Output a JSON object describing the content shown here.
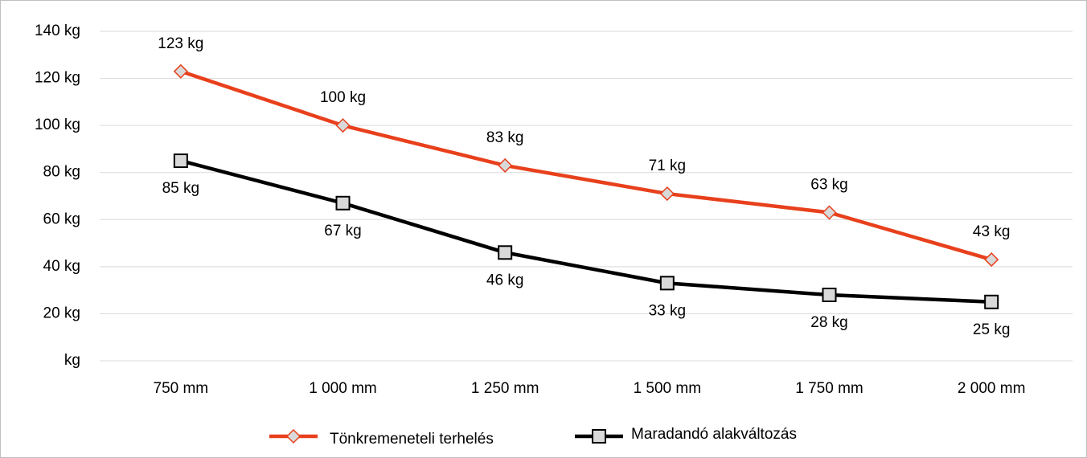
{
  "chart_data": {
    "type": "line",
    "categories": [
      "750 mm",
      "1 000 mm",
      "1 250 mm",
      "1 500 mm",
      "1 750 mm",
      "2 000 mm"
    ],
    "series": [
      {
        "name": "Tönkremeneteli terhelés",
        "color": "#e8401c",
        "marker": "diamond",
        "values": [
          123,
          100,
          83,
          71,
          63,
          43
        ],
        "value_labels": [
          "123 kg",
          "100 kg",
          "83 kg",
          "71 kg",
          "63 kg",
          "43 kg"
        ]
      },
      {
        "name": "Maradandó alakváltozás",
        "color": "#000000",
        "marker": "square",
        "values": [
          85,
          67,
          46,
          33,
          28,
          25
        ],
        "value_labels": [
          "85 kg",
          "67 kg",
          "46 kg",
          "33 kg",
          "28 kg",
          "25 kg"
        ]
      }
    ],
    "ylim": [
      0,
      140
    ],
    "yticks": [
      {
        "value": 0,
        "label": "kg"
      },
      {
        "value": 20,
        "label": "20 kg"
      },
      {
        "value": 40,
        "label": "40 kg"
      },
      {
        "value": 60,
        "label": "60 kg"
      },
      {
        "value": 80,
        "label": "80 kg"
      },
      {
        "value": 100,
        "label": "100 kg"
      },
      {
        "value": 120,
        "label": "120 kg"
      },
      {
        "value": 140,
        "label": "140 kg"
      }
    ],
    "grid": true,
    "legend": "bottom"
  }
}
